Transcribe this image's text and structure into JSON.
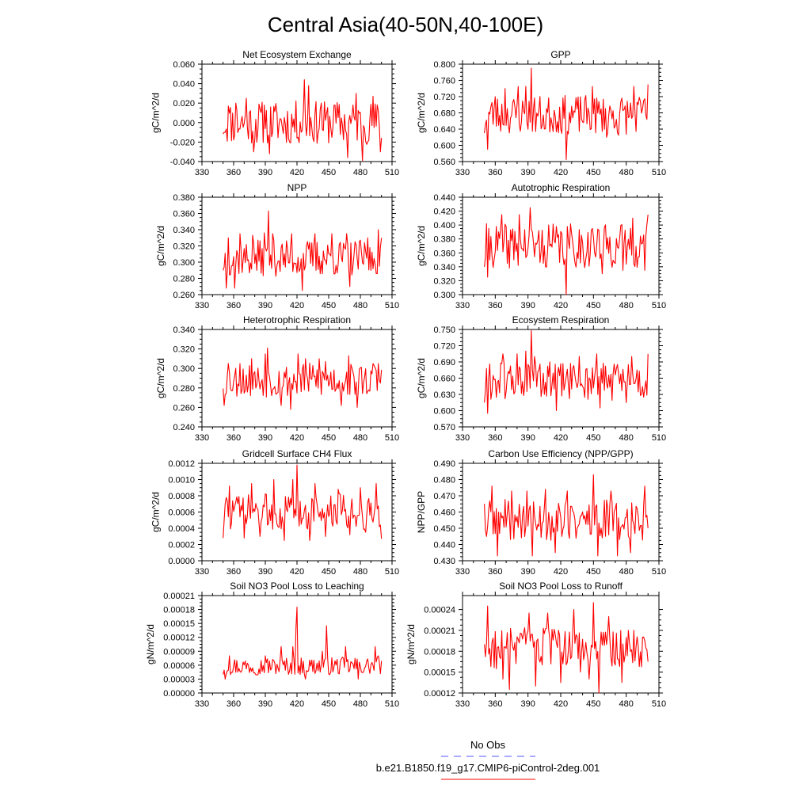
{
  "figure": {
    "title": "Central Asia(40-50N,40-100E)",
    "legend": [
      {
        "label": "No Obs",
        "color": "#5555ff",
        "style": "dashed"
      },
      {
        "label": "b.e21.B1850.f19_g17.CMIP6-piControl-2deg.001",
        "color": "#ff0000",
        "style": "solid"
      }
    ],
    "series_color": "#ff0000"
  },
  "chart_data": [
    {
      "type": "line",
      "title": "Net Ecosystem Exchange",
      "ylabel": "gC/m^2/d",
      "xlabel": "",
      "xlim": [
        330,
        510
      ],
      "xticks": [
        "330",
        "360",
        "390",
        "420",
        "450",
        "480",
        "510"
      ],
      "ylim": [
        -0.04,
        0.06
      ],
      "yticks": [
        "-0.040",
        "-0.020",
        "0.000",
        "0.020",
        "0.040",
        "0.060"
      ],
      "x_start": 350,
      "x_end": 500,
      "seed": 11,
      "base": 0.0,
      "amp": 0.014,
      "peaks": [
        [
          351,
          -0.01
        ],
        [
          355,
          0.017
        ],
        [
          362,
          0.02
        ],
        [
          372,
          0.025
        ],
        [
          379,
          -0.03
        ],
        [
          389,
          0.018
        ],
        [
          394,
          -0.032
        ],
        [
          413,
          -0.02
        ],
        [
          427,
          0.044
        ],
        [
          431,
          0.038
        ],
        [
          443,
          0.02
        ],
        [
          456,
          0.018
        ],
        [
          468,
          -0.036
        ],
        [
          476,
          0.03
        ],
        [
          482,
          -0.039
        ],
        [
          492,
          0.027
        ],
        [
          499,
          -0.03
        ]
      ]
    },
    {
      "type": "line",
      "title": "GPP",
      "ylabel": "gC/m^2/d",
      "xlabel": "",
      "xlim": [
        330,
        510
      ],
      "xticks": [
        "330",
        "360",
        "390",
        "420",
        "450",
        "480",
        "510"
      ],
      "ylim": [
        0.56,
        0.8
      ],
      "yticks": [
        "0.560",
        "0.600",
        "0.640",
        "0.680",
        "0.720",
        "0.760",
        "0.800"
      ],
      "x_start": 350,
      "x_end": 500,
      "seed": 23,
      "base": 0.675,
      "amp": 0.03,
      "peaks": [
        [
          350,
          0.63
        ],
        [
          353,
          0.59
        ],
        [
          360,
          0.72
        ],
        [
          369,
          0.74
        ],
        [
          381,
          0.745
        ],
        [
          388,
          0.745
        ],
        [
          393,
          0.79
        ],
        [
          405,
          0.64
        ],
        [
          425,
          0.565
        ],
        [
          449,
          0.745
        ],
        [
          462,
          0.62
        ],
        [
          473,
          0.625
        ],
        [
          487,
          0.745
        ],
        [
          496,
          0.71
        ],
        [
          500,
          0.75
        ]
      ]
    },
    {
      "type": "line",
      "title": "NPP",
      "ylabel": "gC/m^2/d",
      "xlabel": "",
      "xlim": [
        330,
        510
      ],
      "xticks": [
        "330",
        "360",
        "390",
        "420",
        "450",
        "480",
        "510"
      ],
      "ylim": [
        0.26,
        0.38
      ],
      "yticks": [
        "0.260",
        "0.280",
        "0.300",
        "0.320",
        "0.340",
        "0.360",
        "0.380"
      ],
      "x_start": 350,
      "x_end": 500,
      "seed": 37,
      "base": 0.305,
      "amp": 0.014,
      "peaks": [
        [
          350,
          0.29
        ],
        [
          353,
          0.268
        ],
        [
          355,
          0.33
        ],
        [
          361,
          0.268
        ],
        [
          366,
          0.335
        ],
        [
          378,
          0.333
        ],
        [
          389,
          0.336
        ],
        [
          393,
          0.363
        ],
        [
          397,
          0.335
        ],
        [
          415,
          0.335
        ],
        [
          425,
          0.265
        ],
        [
          437,
          0.335
        ],
        [
          453,
          0.335
        ],
        [
          467,
          0.335
        ],
        [
          470,
          0.27
        ],
        [
          487,
          0.33
        ],
        [
          490,
          0.29
        ],
        [
          497,
          0.34
        ],
        [
          500,
          0.33
        ]
      ]
    },
    {
      "type": "line",
      "title": "Autotrophic Respiration",
      "ylabel": "gC/m^2/d",
      "xlabel": "",
      "xlim": [
        330,
        510
      ],
      "xticks": [
        "330",
        "360",
        "390",
        "420",
        "450",
        "480",
        "510"
      ],
      "ylim": [
        0.3,
        0.44
      ],
      "yticks": [
        "0.300",
        "0.320",
        "0.340",
        "0.360",
        "0.380",
        "0.400",
        "0.420",
        "0.440"
      ],
      "x_start": 350,
      "x_end": 500,
      "seed": 41,
      "base": 0.37,
      "amp": 0.02,
      "peaks": [
        [
          350,
          0.34
        ],
        [
          353,
          0.325
        ],
        [
          366,
          0.415
        ],
        [
          371,
          0.345
        ],
        [
          382,
          0.415
        ],
        [
          392,
          0.425
        ],
        [
          404,
          0.345
        ],
        [
          425,
          0.3
        ],
        [
          449,
          0.395
        ],
        [
          458,
          0.33
        ],
        [
          477,
          0.335
        ],
        [
          486,
          0.41
        ],
        [
          497,
          0.335
        ],
        [
          500,
          0.415
        ]
      ]
    },
    {
      "type": "line",
      "title": "Heterotrophic Respiration",
      "ylabel": "gC/m^2/d",
      "xlabel": "",
      "xlim": [
        330,
        510
      ],
      "xticks": [
        "330",
        "360",
        "390",
        "420",
        "450",
        "480",
        "510"
      ],
      "ylim": [
        0.24,
        0.34
      ],
      "yticks": [
        "0.240",
        "0.260",
        "0.280",
        "0.300",
        "0.320",
        "0.340"
      ],
      "x_start": 350,
      "x_end": 500,
      "seed": 53,
      "base": 0.288,
      "amp": 0.011,
      "peaks": [
        [
          351,
          0.262
        ],
        [
          355,
          0.305
        ],
        [
          366,
          0.305
        ],
        [
          377,
          0.31
        ],
        [
          390,
          0.315
        ],
        [
          392,
          0.321
        ],
        [
          405,
          0.262
        ],
        [
          414,
          0.258
        ],
        [
          421,
          0.315
        ],
        [
          428,
          0.31
        ],
        [
          441,
          0.31
        ],
        [
          447,
          0.307
        ],
        [
          462,
          0.262
        ],
        [
          469,
          0.313
        ],
        [
          477,
          0.26
        ],
        [
          492,
          0.305
        ],
        [
          497,
          0.305
        ],
        [
          499,
          0.285
        ]
      ]
    },
    {
      "type": "line",
      "title": "Ecosystem Respiration",
      "ylabel": "gC/m^2/d",
      "xlabel": "",
      "xlim": [
        330,
        510
      ],
      "xticks": [
        "330",
        "360",
        "390",
        "420",
        "450",
        "480",
        "510"
      ],
      "ylim": [
        0.57,
        0.75
      ],
      "yticks": [
        "0.570",
        "0.600",
        "0.630",
        "0.660",
        "0.690",
        "0.720",
        "0.750"
      ],
      "x_start": 350,
      "x_end": 500,
      "seed": 61,
      "base": 0.655,
      "amp": 0.023,
      "peaks": [
        [
          350,
          0.615
        ],
        [
          353,
          0.595
        ],
        [
          367,
          0.705
        ],
        [
          380,
          0.705
        ],
        [
          388,
          0.71
        ],
        [
          393,
          0.748
        ],
        [
          396,
          0.7
        ],
        [
          405,
          0.63
        ],
        [
          416,
          0.6
        ],
        [
          437,
          0.7
        ],
        [
          453,
          0.705
        ],
        [
          456,
          0.605
        ],
        [
          480,
          0.615
        ],
        [
          485,
          0.7
        ],
        [
          496,
          0.625
        ],
        [
          500,
          0.705
        ]
      ]
    },
    {
      "type": "line",
      "title": "Gridcell Surface CH4 Flux",
      "ylabel": "gC/m^2/d",
      "xlabel": "",
      "xlim": [
        330,
        510
      ],
      "xticks": [
        "330",
        "360",
        "390",
        "420",
        "450",
        "480",
        "510"
      ],
      "ylim": [
        0,
        0.0012
      ],
      "yticks": [
        "0.0000",
        "0.0002",
        "0.0004",
        "0.0006",
        "0.0008",
        "0.0010",
        "0.0012"
      ],
      "x_start": 350,
      "x_end": 500,
      "seed": 73,
      "base": 0.0006,
      "amp": 0.00014,
      "peaks": [
        [
          350,
          0.00028
        ],
        [
          352,
          0.0007
        ],
        [
          356,
          0.00092
        ],
        [
          370,
          0.00028
        ],
        [
          377,
          0.00095
        ],
        [
          385,
          0.0003
        ],
        [
          398,
          0.001
        ],
        [
          408,
          0.00025
        ],
        [
          416,
          0.001
        ],
        [
          420,
          0.00118
        ],
        [
          432,
          0.00025
        ],
        [
          437,
          0.00095
        ],
        [
          447,
          0.0003
        ],
        [
          459,
          0.00088
        ],
        [
          470,
          0.00032
        ],
        [
          480,
          0.0009
        ],
        [
          485,
          0.00035
        ],
        [
          495,
          0.00095
        ],
        [
          500,
          0.00027
        ]
      ]
    },
    {
      "type": "line",
      "title": "Carbon Use Efficiency (NPP/GPP)",
      "ylabel": "NPP/GPP",
      "xlabel": "",
      "xlim": [
        330,
        510
      ],
      "xticks": [
        "330",
        "360",
        "390",
        "420",
        "450",
        "480",
        "510"
      ],
      "ylim": [
        0.43,
        0.49
      ],
      "yticks": [
        "0.430",
        "0.440",
        "0.450",
        "0.460",
        "0.470",
        "0.480",
        "0.490"
      ],
      "x_start": 350,
      "x_end": 500,
      "seed": 89,
      "base": 0.455,
      "amp": 0.008,
      "peaks": [
        [
          350,
          0.465
        ],
        [
          352,
          0.445
        ],
        [
          357,
          0.476
        ],
        [
          362,
          0.433
        ],
        [
          375,
          0.473
        ],
        [
          389,
          0.473
        ],
        [
          394,
          0.433
        ],
        [
          406,
          0.474
        ],
        [
          415,
          0.435
        ],
        [
          426,
          0.473
        ],
        [
          450,
          0.483
        ],
        [
          454,
          0.433
        ],
        [
          466,
          0.473
        ],
        [
          472,
          0.433
        ],
        [
          484,
          0.435
        ],
        [
          497,
          0.476
        ],
        [
          500,
          0.45
        ]
      ]
    },
    {
      "type": "line",
      "title": "Soil NO3 Pool Loss to Leaching",
      "ylabel": "gN/m^2/d",
      "xlabel": "",
      "xlim": [
        330,
        510
      ],
      "xticks": [
        "330",
        "360",
        "390",
        "420",
        "450",
        "480",
        "510"
      ],
      "ylim": [
        0,
        0.00021
      ],
      "yticks": [
        "0.00000",
        "0.00003",
        "0.00006",
        "0.00009",
        "0.00012",
        "0.00015",
        "0.00018",
        "0.00021"
      ],
      "x_start": 350,
      "x_end": 500,
      "seed": 97,
      "base": 5.8e-05,
      "amp": 1.2e-05,
      "peaks": [
        [
          350,
          4e-05
        ],
        [
          352,
          3e-05
        ],
        [
          356,
          8e-05
        ],
        [
          368,
          5e-05
        ],
        [
          390,
          8e-05
        ],
        [
          405,
          0.0001
        ],
        [
          416,
          0.0001
        ],
        [
          419,
          0.00014
        ],
        [
          420,
          0.000185
        ],
        [
          423,
          4e-05
        ],
        [
          428,
          3e-05
        ],
        [
          444,
          9e-05
        ],
        [
          448,
          0.000145
        ],
        [
          466,
          0.0001
        ],
        [
          478,
          3e-05
        ],
        [
          494,
          0.0001
        ],
        [
          497,
          8e-05
        ]
      ]
    },
    {
      "type": "line",
      "title": "Soil NO3 Pool Loss to Runoff",
      "ylabel": "gN/m^2/d",
      "xlabel": "",
      "xlim": [
        330,
        510
      ],
      "xticks": [
        "330",
        "360",
        "390",
        "420",
        "450",
        "480",
        "510"
      ],
      "ylim": [
        0.00012,
        0.00026
      ],
      "yticks": [
        "0.00012",
        "0.00015",
        "0.00018",
        "0.00021",
        "0.00024"
      ],
      "x_start": 350,
      "x_end": 500,
      "seed": 103,
      "base": 0.000185,
      "amp": 1.8e-05,
      "peaks": [
        [
          350,
          0.00019
        ],
        [
          353,
          0.000245
        ],
        [
          361,
          0.000155
        ],
        [
          367,
          0.00014
        ],
        [
          373,
          0.000125
        ],
        [
          384,
          0.000205
        ],
        [
          391,
          0.000235
        ],
        [
          397,
          0.00013
        ],
        [
          408,
          0.000235
        ],
        [
          420,
          0.000135
        ],
        [
          432,
          0.00024
        ],
        [
          438,
          0.00015
        ],
        [
          446,
          0.00014
        ],
        [
          450,
          0.00025
        ],
        [
          455,
          0.00012
        ],
        [
          464,
          0.00023
        ],
        [
          476,
          0.000135
        ],
        [
          487,
          0.00021
        ],
        [
          495,
          0.0002
        ],
        [
          500,
          0.000165
        ]
      ]
    }
  ]
}
